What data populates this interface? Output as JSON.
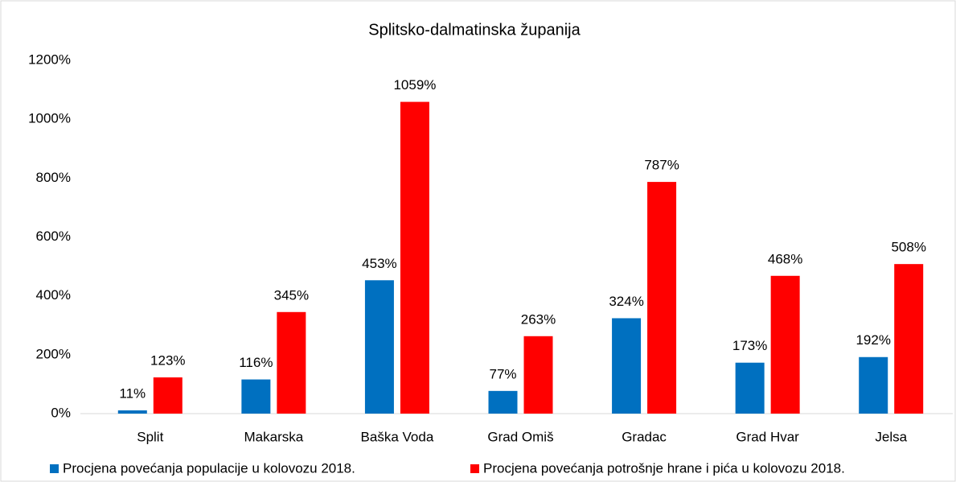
{
  "chart_data": {
    "type": "bar",
    "title": "Splitsko-dalmatinska županija",
    "categories": [
      "Split",
      "Makarska",
      "Baška Voda",
      "Grad Omiš",
      "Gradac",
      "Grad Hvar",
      "Jelsa"
    ],
    "series": [
      {
        "name": "Procjena povećanja populacije u kolovozu 2018.",
        "color": "#0070c0",
        "values": [
          11,
          116,
          453,
          77,
          324,
          173,
          192
        ],
        "value_labels": [
          "11%",
          "116%",
          "453%",
          "77%",
          "324%",
          "173%",
          "192%"
        ]
      },
      {
        "name": "Procjena povećanja potrošnje hrane i pića u kolovozu 2018.",
        "color": "#ff0000",
        "values": [
          123,
          345,
          1059,
          263,
          787,
          468,
          508
        ],
        "value_labels": [
          "123%",
          "345%",
          "1059%",
          "263%",
          "787%",
          "468%",
          "508%"
        ]
      }
    ],
    "ylim": [
      0,
      1200
    ],
    "yticks": [
      {
        "value": 0,
        "label": "0%"
      },
      {
        "value": 200,
        "label": "200%"
      },
      {
        "value": 400,
        "label": "400%"
      },
      {
        "value": 600,
        "label": "600%"
      },
      {
        "value": 800,
        "label": "800%"
      },
      {
        "value": 1000,
        "label": "1000%"
      },
      {
        "value": 1200,
        "label": "1200%"
      }
    ],
    "grid": false,
    "legend": "bottom"
  }
}
